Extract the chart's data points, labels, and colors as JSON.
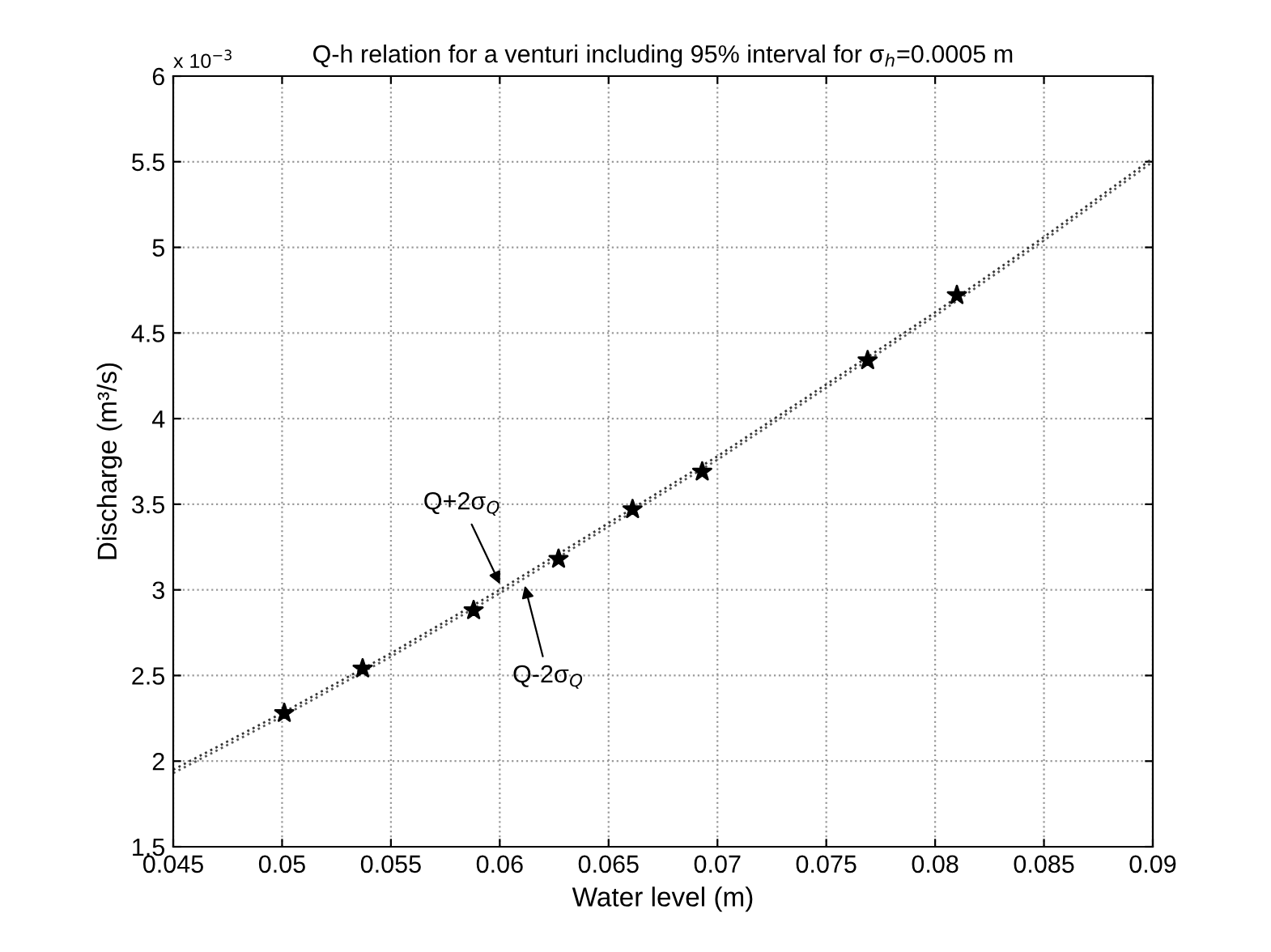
{
  "chart_data": {
    "type": "line",
    "title": "Q-h relation for a venturi including 95% interval for σ$_{h}$=0.0005 m",
    "xlabel": "Water level (m)",
    "ylabel": "Discharge (m³/s)",
    "xlim": [
      0.045,
      0.09
    ],
    "xticks": [
      0.045,
      0.05,
      0.055,
      0.06,
      0.065,
      0.07,
      0.075,
      0.08,
      0.085,
      0.09
    ],
    "ylim": [
      1.5,
      6
    ],
    "yticks": [
      1.5,
      2,
      2.5,
      3,
      3.5,
      4,
      4.5,
      5,
      5.5,
      6
    ],
    "grid": true,
    "legend": false,
    "series": [
      {
        "color": "#333333",
        "line_style": "dotted",
        "marker": "none",
        "x": [
          0.045,
          0.05,
          0.055,
          0.06,
          0.065,
          0.07,
          0.075,
          0.08,
          0.085,
          0.09
        ],
        "values": [
          1.95,
          2.28,
          2.63,
          3.0,
          3.39,
          3.78,
          4.2,
          4.62,
          5.06,
          5.52
        ]
      },
      {
        "color": "#555555",
        "line_style": "dotted",
        "marker": "none",
        "x": [
          0.045,
          0.05,
          0.055,
          0.06,
          0.065,
          0.07,
          0.075,
          0.08,
          0.085,
          0.09
        ],
        "values": [
          1.93,
          2.26,
          2.61,
          2.98,
          3.37,
          3.76,
          4.18,
          4.6,
          5.04,
          5.5
        ]
      },
      {
        "type": "scatter",
        "color": "#000000",
        "marker": "star",
        "x": [
          0.0501,
          0.0537,
          0.0588,
          0.0627,
          0.0661,
          0.0693,
          0.0769,
          0.081
        ],
        "values": [
          2.28,
          2.54,
          2.88,
          3.18,
          3.47,
          3.69,
          4.34,
          4.72
        ]
      }
    ],
    "annotations": [
      "x 10$^{−3}$",
      {
        "text": "Q+2σ$_{Q}$",
        "x": 0.0601,
        "y": 3.01
      },
      {
        "text": "Q-2σ$_{Q}$",
        "x": 0.0611,
        "y": 3.05
      }
    ]
  }
}
